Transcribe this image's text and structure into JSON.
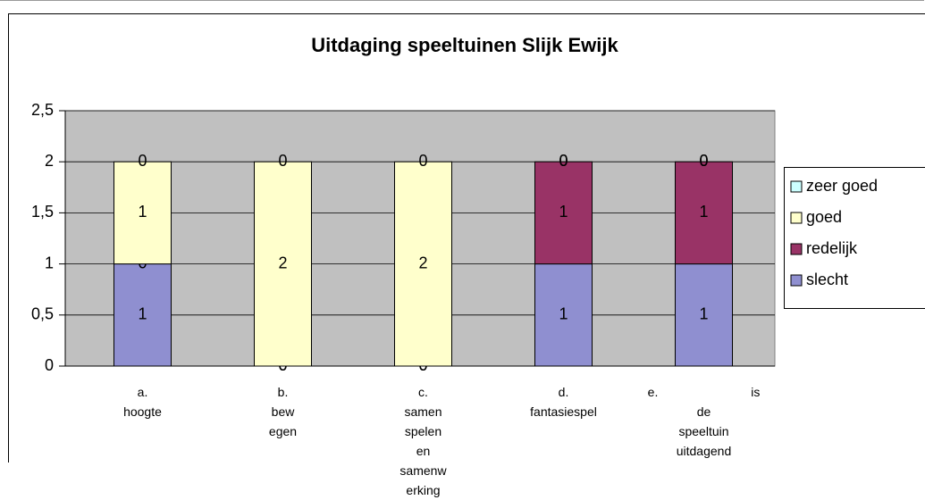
{
  "chart_data": {
    "type": "stacked_bar",
    "title": "Uitdaging speeltuinen Slijk Ewijk",
    "categories": [
      "a. hoogte",
      "b. bew egen",
      "c. samen spelen en samenw erking",
      "d. fantasiespel",
      "e. is de speeltuin uitdagend"
    ],
    "series": [
      {
        "name": "slecht",
        "color": "#8f8fd0",
        "values": [
          1,
          0,
          0,
          1,
          1
        ]
      },
      {
        "name": "redelijk",
        "color": "#993366",
        "values": [
          0,
          0,
          0,
          1,
          1
        ]
      },
      {
        "name": "goed",
        "color": "#ffffcc",
        "values": [
          1,
          2,
          2,
          0,
          0
        ]
      },
      {
        "name": "zeer goed",
        "color": "#ccffff",
        "values": [
          0,
          0,
          0,
          0,
          0
        ]
      }
    ],
    "ylim": [
      0,
      2.5
    ],
    "yticks": [
      0,
      {
        "value": 0.5,
        "label": "0,5"
      },
      1,
      {
        "value": 1.5,
        "label": "1,5"
      },
      2,
      {
        "value": 2.5,
        "label": "2,5"
      }
    ],
    "grid": true,
    "legend": "right"
  }
}
